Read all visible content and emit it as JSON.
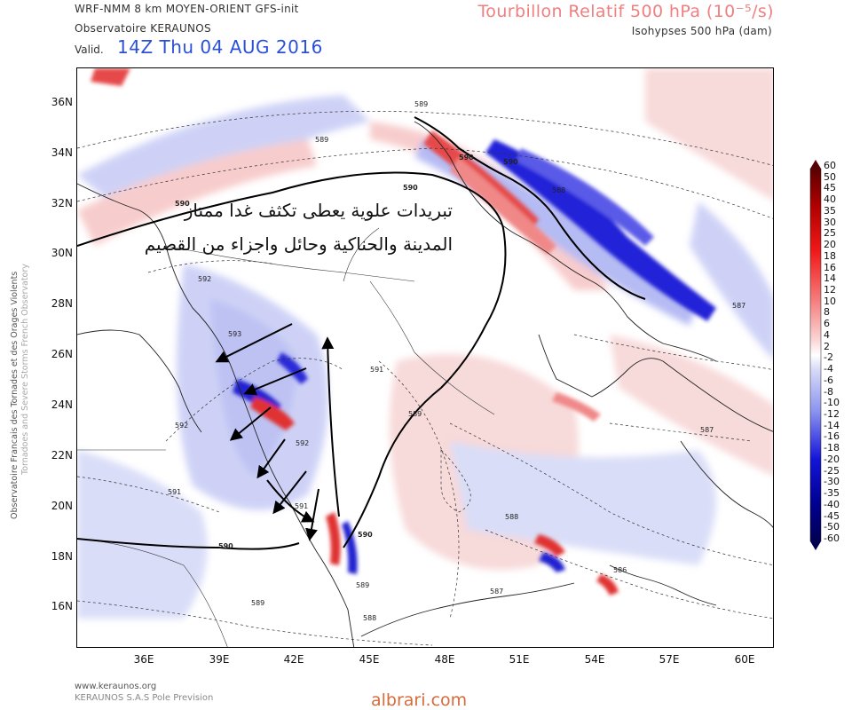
{
  "header": {
    "model": "WRF-NMM 8 km MOYEN-ORIENT   GFS-init",
    "observatory": "Observatoire KERAUNOS",
    "valid_label": "Valid.",
    "valid_time": "14Z Thu 04 AUG 2016",
    "product_title": "Tourbillon Relatif 500 hPa (10⁻⁵/s)",
    "product_subtitle": "Isohypses 500 hPa (dam)"
  },
  "side_credit": {
    "line1": "Observatoire Francais des Tornades et des Orages Violents",
    "line2": "Tornadoes and Severe Storms French Observatory"
  },
  "map": {
    "lat_labels": [
      "36N",
      "34N",
      "32N",
      "30N",
      "28N",
      "26N",
      "24N",
      "22N",
      "20N",
      "18N",
      "16N"
    ],
    "lon_labels": [
      "36E",
      "39E",
      "42E",
      "45E",
      "48E",
      "51E",
      "54E",
      "57E",
      "60E"
    ],
    "isohypse_labels": [
      "589",
      "590",
      "590",
      "590",
      "590",
      "589",
      "588",
      "587",
      "592",
      "593",
      "592",
      "592",
      "591",
      "591",
      "589",
      "588",
      "587",
      "587",
      "586",
      "589",
      "590",
      "590",
      "589",
      "588",
      "591"
    ],
    "annotation": {
      "line1": "تبريدات علوية يعطى تكثف غدا ممتاز",
      "line2": "المدينة والحناكية  وحائل واجزاء من القصيم"
    },
    "arrow_icon": "arrow-icon"
  },
  "colorbar": {
    "labels": [
      "60",
      "50",
      "45",
      "40",
      "35",
      "30",
      "25",
      "20",
      "18",
      "16",
      "14",
      "12",
      "10",
      "8",
      "6",
      "4",
      "2",
      "-2",
      "-4",
      "-6",
      "-8",
      "-10",
      "-12",
      "-14",
      "-16",
      "-18",
      "-20",
      "-25",
      "-30",
      "-35",
      "-40",
      "-45",
      "-50",
      "-60"
    ],
    "colors": {
      "max": "#5a0000",
      "strong_pos": "#d41010",
      "weak_pos": "#f7c7c7",
      "neutral": "#ffffff",
      "weak_neg": "#c9cdf5",
      "strong_neg": "#1414d8",
      "min": "#000052"
    }
  },
  "footer": {
    "url": "www.keraunos.org",
    "company": "KERAUNOS S.A.S Pole Prevision",
    "watermark": "albrari.com"
  }
}
